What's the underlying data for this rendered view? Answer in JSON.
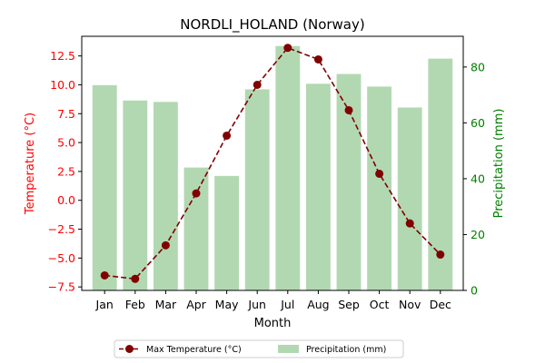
{
  "chart_data": {
    "type": "bar+line",
    "title": "NORDLI_HOLAND (Norway)",
    "xlabel": "Month",
    "categories": [
      "Jan",
      "Feb",
      "Mar",
      "Apr",
      "May",
      "Jun",
      "Jul",
      "Aug",
      "Sep",
      "Oct",
      "Nov",
      "Dec"
    ],
    "left_axis": {
      "label": "Temperature (°C)",
      "color": "#ff0000",
      "ylim": [
        -7.8,
        14.2
      ],
      "ticks": [
        -7.5,
        -5.0,
        -2.5,
        0.0,
        2.5,
        5.0,
        7.5,
        10.0,
        12.5
      ],
      "tick_labels": [
        "−7.5",
        "−5.0",
        "−2.5",
        "0.0",
        "2.5",
        "5.0",
        "7.5",
        "10.0",
        "12.5"
      ]
    },
    "right_axis": {
      "label": "Precipitation (mm)",
      "color": "#008000",
      "ylim": [
        0,
        91
      ],
      "ticks": [
        0,
        20,
        40,
        60,
        80
      ],
      "tick_labels": [
        "0",
        "20",
        "40",
        "60",
        "80"
      ]
    },
    "series": [
      {
        "name": "Max Temperature (°C)",
        "kind": "line",
        "axis": "left",
        "color": "#800000",
        "linestyle": "dashed",
        "marker": "circle",
        "values": [
          -6.5,
          -6.8,
          -3.9,
          0.6,
          5.6,
          10.0,
          13.2,
          12.2,
          7.8,
          2.3,
          -2.0,
          -4.7
        ]
      },
      {
        "name": "Precipitation (mm)",
        "kind": "bar",
        "axis": "right",
        "color": "#b2d8b2",
        "values": [
          73.5,
          68,
          67.5,
          44,
          41,
          72,
          87.5,
          74,
          77.5,
          73,
          65.5,
          83
        ]
      }
    ],
    "legend": {
      "placement": "bottom-center",
      "entries": [
        "Max Temperature (°C)",
        "Precipitation (mm)"
      ]
    },
    "grid": false
  }
}
